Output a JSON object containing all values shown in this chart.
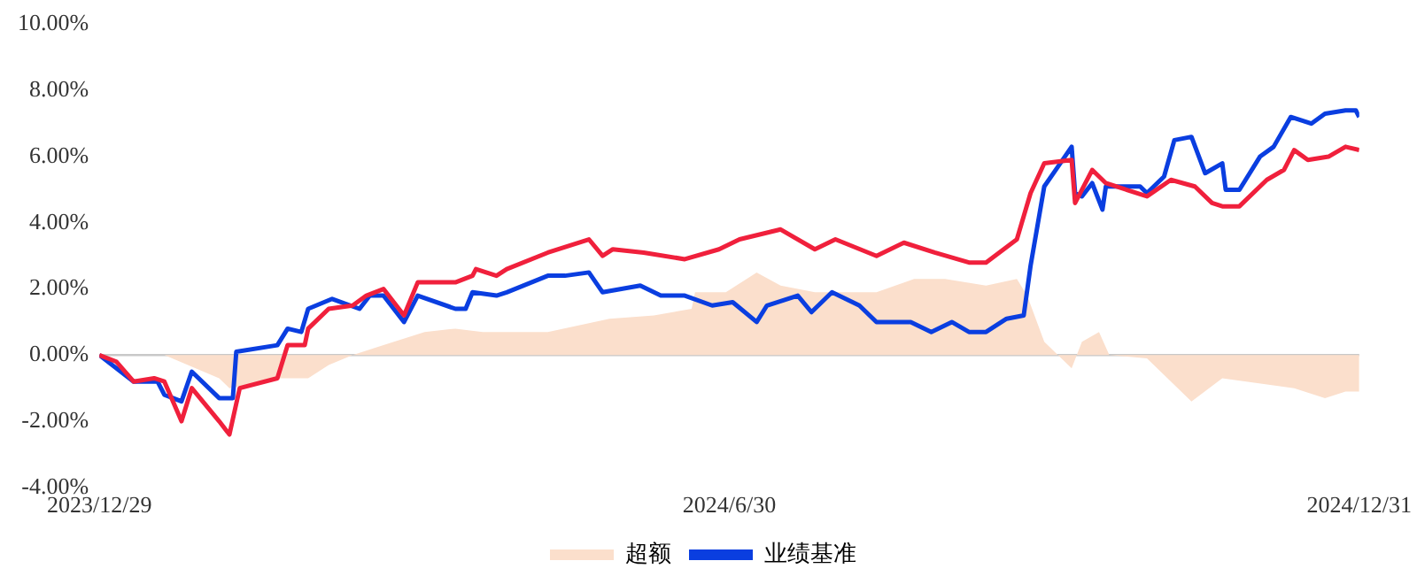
{
  "chart_data": {
    "type": "line",
    "xlim": [
      "2023-12-29",
      "2024-12-31"
    ],
    "xticks": [
      {
        "value": "2023-12-29",
        "label": "2023/12/29"
      },
      {
        "value": "2024-06-30",
        "label": "2024/6/30"
      },
      {
        "value": "2024-12-31",
        "label": "2024/12/31"
      }
    ],
    "ylim": [
      -4,
      10
    ],
    "yticks": [
      {
        "value": -4,
        "label": "-4.00%"
      },
      {
        "value": -2,
        "label": "-2.00%"
      },
      {
        "value": 0,
        "label": "0.00%"
      },
      {
        "value": 2,
        "label": "2.00%"
      },
      {
        "value": 4,
        "label": "4.00%"
      },
      {
        "value": 6,
        "label": "6.00%"
      },
      {
        "value": 8,
        "label": "8.00%"
      },
      {
        "value": 10,
        "label": "10.00%"
      }
    ],
    "grid": false,
    "legend": "bottom",
    "marker": "none",
    "ref_lines": [
      {
        "axis": "y",
        "value": 0,
        "color": "#c8c8c8"
      }
    ],
    "series": [
      {
        "name": "超额",
        "type": "area",
        "color": "#fbdfcc",
        "x": [
          "2023-12-29",
          "2024-01-03",
          "2024-01-17",
          "2024-02-02",
          "2024-02-05",
          "2024-02-19",
          "2024-02-28",
          "2024-03-05",
          "2024-03-12",
          "2024-03-21",
          "2024-04-02",
          "2024-04-11",
          "2024-04-19",
          "2024-04-26",
          "2024-05-08",
          "2024-05-26",
          "2024-06-08",
          "2024-06-19",
          "2024-06-20",
          "2024-06-29",
          "2024-07-08",
          "2024-07-15",
          "2024-07-25",
          "2024-08-12",
          "2024-08-23",
          "2024-09-01",
          "2024-09-13",
          "2024-09-22",
          "2024-09-25",
          "2024-09-30",
          "2024-10-08",
          "2024-10-11",
          "2024-10-16",
          "2024-10-19",
          "2024-10-30",
          "2024-11-06",
          "2024-11-12",
          "2024-11-21",
          "2024-11-28",
          "2024-12-12",
          "2024-12-21",
          "2024-12-27",
          "2024-12-31"
        ],
        "values": [
          0,
          0,
          0,
          -0.7,
          -1.0,
          -0.7,
          -0.7,
          -0.3,
          0,
          0.3,
          0.7,
          0.8,
          0.7,
          0.7,
          0.7,
          1.1,
          1.2,
          1.4,
          1.9,
          1.9,
          2.5,
          2.1,
          1.9,
          1.9,
          2.3,
          2.3,
          2.1,
          2.3,
          1.8,
          0.4,
          -0.4,
          0.4,
          0.7,
          0,
          -0.1,
          -0.8,
          -1.4,
          -0.7,
          -0.8,
          -1.0,
          -1.3,
          -1.1,
          -1.1
        ]
      },
      {
        "type": "line",
        "color": "#f0203c",
        "x": [
          "2023-12-29",
          "2024-01-03",
          "2024-01-08",
          "2024-01-14",
          "2024-01-17",
          "2024-01-22",
          "2024-01-25",
          "2024-02-02",
          "2024-02-05",
          "2024-02-08",
          "2024-02-19",
          "2024-02-22",
          "2024-02-27",
          "2024-02-28",
          "2024-03-05",
          "2024-03-12",
          "2024-03-16",
          "2024-03-21",
          "2024-03-27",
          "2024-03-31",
          "2024-04-11",
          "2024-04-16",
          "2024-04-17",
          "2024-04-23",
          "2024-04-26",
          "2024-05-08",
          "2024-05-20",
          "2024-05-24",
          "2024-05-27",
          "2024-06-05",
          "2024-06-17",
          "2024-06-27",
          "2024-07-03",
          "2024-07-15",
          "2024-07-25",
          "2024-07-31",
          "2024-08-12",
          "2024-08-20",
          "2024-08-29",
          "2024-09-08",
          "2024-09-13",
          "2024-09-22",
          "2024-09-26",
          "2024-09-30",
          "2024-10-08",
          "2024-10-09",
          "2024-10-14",
          "2024-10-18",
          "2024-10-30",
          "2024-11-06",
          "2024-11-13",
          "2024-11-18",
          "2024-11-21",
          "2024-11-26",
          "2024-12-04",
          "2024-12-09",
          "2024-12-12",
          "2024-12-16",
          "2024-12-22",
          "2024-12-27",
          "2024-12-31"
        ],
        "values": [
          0,
          -0.2,
          -0.8,
          -0.7,
          -0.8,
          -2.0,
          -1.0,
          -2.0,
          -2.4,
          -1.0,
          -0.7,
          0.3,
          0.3,
          0.8,
          1.4,
          1.5,
          1.8,
          2.0,
          1.2,
          2.2,
          2.2,
          2.4,
          2.6,
          2.4,
          2.6,
          3.1,
          3.5,
          3.0,
          3.2,
          3.1,
          2.9,
          3.2,
          3.5,
          3.8,
          3.2,
          3.5,
          3.0,
          3.4,
          3.1,
          2.8,
          2.8,
          3.5,
          4.9,
          5.8,
          5.9,
          4.6,
          5.6,
          5.2,
          4.8,
          5.3,
          5.1,
          4.6,
          4.5,
          4.5,
          5.3,
          5.6,
          6.2,
          5.9,
          6.0,
          6.3,
          6.2
        ]
      },
      {
        "name": "业绩基准",
        "type": "line",
        "color": "#0a3ee0",
        "x": [
          "2023-12-29",
          "2024-01-08",
          "2024-01-15",
          "2024-01-17",
          "2024-01-22",
          "2024-01-25",
          "2024-02-02",
          "2024-02-06",
          "2024-02-07",
          "2024-02-19",
          "2024-02-22",
          "2024-02-26",
          "2024-02-28",
          "2024-03-06",
          "2024-03-14",
          "2024-03-17",
          "2024-03-21",
          "2024-03-27",
          "2024-03-31",
          "2024-04-11",
          "2024-04-14",
          "2024-04-16",
          "2024-04-23",
          "2024-04-26",
          "2024-05-08",
          "2024-05-13",
          "2024-05-20",
          "2024-05-24",
          "2024-06-04",
          "2024-06-10",
          "2024-06-17",
          "2024-06-25",
          "2024-07-01",
          "2024-07-08",
          "2024-07-11",
          "2024-07-20",
          "2024-07-24",
          "2024-07-30",
          "2024-08-07",
          "2024-08-12",
          "2024-08-22",
          "2024-08-28",
          "2024-09-03",
          "2024-09-08",
          "2024-09-13",
          "2024-09-19",
          "2024-09-24",
          "2024-09-26",
          "2024-09-30",
          "2024-10-04",
          "2024-10-08",
          "2024-10-09",
          "2024-10-11",
          "2024-10-14",
          "2024-10-17",
          "2024-10-18",
          "2024-10-28",
          "2024-10-30",
          "2024-11-04",
          "2024-11-07",
          "2024-11-12",
          "2024-11-16",
          "2024-11-21",
          "2024-11-22",
          "2024-11-26",
          "2024-12-02",
          "2024-12-06",
          "2024-12-11",
          "2024-12-17",
          "2024-12-21",
          "2024-12-27",
          "2024-12-30",
          "2024-12-31"
        ],
        "values": [
          0,
          -0.8,
          -0.8,
          -1.2,
          -1.4,
          -0.5,
          -1.3,
          -1.3,
          0.1,
          0.3,
          0.8,
          0.7,
          1.4,
          1.7,
          1.4,
          1.8,
          1.8,
          1.0,
          1.8,
          1.4,
          1.4,
          1.9,
          1.8,
          1.9,
          2.4,
          2.4,
          2.5,
          1.9,
          2.1,
          1.8,
          1.8,
          1.5,
          1.6,
          1.0,
          1.5,
          1.8,
          1.3,
          1.9,
          1.5,
          1.0,
          1.0,
          0.7,
          1.0,
          0.7,
          0.7,
          1.1,
          1.2,
          2.7,
          5.1,
          5.7,
          6.3,
          4.9,
          4.8,
          5.2,
          4.4,
          5.1,
          5.1,
          4.9,
          5.4,
          6.5,
          6.6,
          5.5,
          5.8,
          5.0,
          5.0,
          6.0,
          6.3,
          7.2,
          7.0,
          7.3,
          7.4,
          7.4,
          7.2
        ]
      }
    ]
  }
}
